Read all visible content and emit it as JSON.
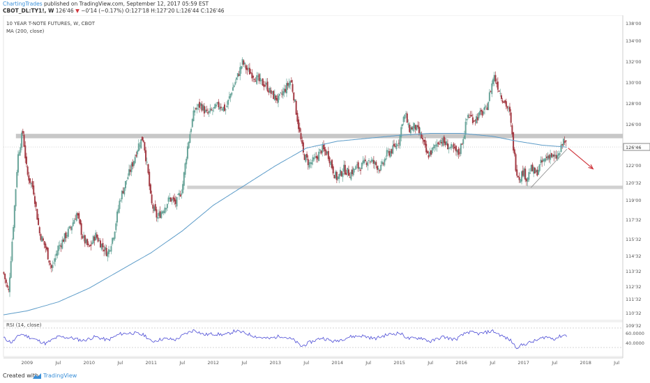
{
  "header": {
    "author": "ChartingTrades",
    "published": "published on TradingView.com, September 12, 2017 05:59 EST",
    "symbol": "CBOT_DL:TY1!, W",
    "last": "126'46",
    "change": "−0'14 (−0.17%)",
    "open": "O:127'18",
    "high": "H:127'20",
    "low": "L:126'44",
    "close": "C:126'46"
  },
  "chart_data": [
    {
      "type": "candlestick",
      "title": "10 YEAR T-NOTE FUTURES, W, CBOT",
      "indicator": "MA (200, close)",
      "x_ticks": [
        "2009",
        "Jul",
        "2010",
        "Jul",
        "2011",
        "Jul",
        "2012",
        "Jul",
        "2013",
        "Jul",
        "2014",
        "Jul",
        "2015",
        "Jul",
        "2016",
        "Jul",
        "2017",
        "Jul",
        "2018",
        "Jul"
      ],
      "y_ticks": [
        "138'00",
        "134'00",
        "132'00",
        "130'00",
        "128'00",
        "126'00",
        "124'00",
        "122'00",
        "120'32",
        "119'00",
        "117'32",
        "115'32",
        "114'32",
        "113'32",
        "112'32",
        "111'32",
        "110'32",
        "109'32"
      ],
      "current_price_label": "126'46",
      "current_price": 126.72,
      "ylim": [
        109.0,
        139.5
      ],
      "xlim": [
        2008.62,
        2018.6
      ],
      "path_anchors": [
        [
          2008.62,
          114.0
        ],
        [
          2008.7,
          111.9
        ],
        [
          2008.78,
          119.0
        ],
        [
          2008.85,
          125.7
        ],
        [
          2008.93,
          128.3
        ],
        [
          2009.0,
          124.0
        ],
        [
          2009.1,
          122.5
        ],
        [
          2009.2,
          118.0
        ],
        [
          2009.3,
          116.5
        ],
        [
          2009.4,
          114.3
        ],
        [
          2009.5,
          116.5
        ],
        [
          2009.6,
          117.5
        ],
        [
          2009.7,
          118.5
        ],
        [
          2009.8,
          120.0
        ],
        [
          2009.9,
          117.5
        ],
        [
          2010.0,
          116.4
        ],
        [
          2010.1,
          117.8
        ],
        [
          2010.2,
          116.8
        ],
        [
          2010.3,
          115.9
        ],
        [
          2010.4,
          118.0
        ],
        [
          2010.5,
          121.5
        ],
        [
          2010.6,
          123.3
        ],
        [
          2010.7,
          125.0
        ],
        [
          2010.8,
          127.0
        ],
        [
          2010.87,
          127.7
        ],
        [
          2010.95,
          124.0
        ],
        [
          2011.0,
          121.0
        ],
        [
          2011.1,
          119.5
        ],
        [
          2011.2,
          120.5
        ],
        [
          2011.3,
          121.5
        ],
        [
          2011.4,
          121.0
        ],
        [
          2011.5,
          122.5
        ],
        [
          2011.58,
          126.5
        ],
        [
          2011.65,
          129.0
        ],
        [
          2011.7,
          130.5
        ],
        [
          2011.8,
          131.0
        ],
        [
          2011.9,
          130.0
        ],
        [
          2012.0,
          130.5
        ],
        [
          2012.1,
          131.0
        ],
        [
          2012.2,
          130.5
        ],
        [
          2012.3,
          132.5
        ],
        [
          2012.4,
          134.0
        ],
        [
          2012.47,
          135.3
        ],
        [
          2012.55,
          134.5
        ],
        [
          2012.65,
          134.0
        ],
        [
          2012.75,
          133.3
        ],
        [
          2012.85,
          133.0
        ],
        [
          2012.95,
          132.0
        ],
        [
          2013.05,
          131.5
        ],
        [
          2013.15,
          132.5
        ],
        [
          2013.25,
          133.5
        ],
        [
          2013.3,
          131.8
        ],
        [
          2013.38,
          128.6
        ],
        [
          2013.45,
          126.0
        ],
        [
          2013.55,
          125.0
        ],
        [
          2013.65,
          125.5
        ],
        [
          2013.75,
          126.5
        ],
        [
          2013.85,
          126.0
        ],
        [
          2013.95,
          124.0
        ],
        [
          2014.0,
          123.5
        ],
        [
          2014.1,
          124.5
        ],
        [
          2014.2,
          124.0
        ],
        [
          2014.3,
          124.6
        ],
        [
          2014.4,
          124.8
        ],
        [
          2014.5,
          125.5
        ],
        [
          2014.6,
          125.0
        ],
        [
          2014.7,
          124.5
        ],
        [
          2014.8,
          126.0
        ],
        [
          2014.9,
          126.5
        ],
        [
          2015.0,
          127.5
        ],
        [
          2015.05,
          129.5
        ],
        [
          2015.1,
          130.0
        ],
        [
          2015.15,
          128.5
        ],
        [
          2015.25,
          128.8
        ],
        [
          2015.35,
          127.8
        ],
        [
          2015.45,
          125.8
        ],
        [
          2015.55,
          126.5
        ],
        [
          2015.65,
          127.5
        ],
        [
          2015.75,
          127.0
        ],
        [
          2015.85,
          126.5
        ],
        [
          2015.95,
          126.0
        ],
        [
          2016.0,
          127.0
        ],
        [
          2016.05,
          128.3
        ],
        [
          2016.1,
          130.0
        ],
        [
          2016.2,
          129.5
        ],
        [
          2016.3,
          130.0
        ],
        [
          2016.4,
          130.5
        ],
        [
          2016.47,
          132.5
        ],
        [
          2016.52,
          134.0
        ],
        [
          2016.58,
          133.0
        ],
        [
          2016.65,
          131.8
        ],
        [
          2016.72,
          131.0
        ],
        [
          2016.78,
          130.0
        ],
        [
          2016.83,
          127.0
        ],
        [
          2016.88,
          124.5
        ],
        [
          2016.93,
          123.6
        ],
        [
          2017.0,
          124.3
        ],
        [
          2017.05,
          123.5
        ],
        [
          2017.12,
          124.5
        ],
        [
          2017.2,
          124.0
        ],
        [
          2017.28,
          125.0
        ],
        [
          2017.35,
          125.5
        ],
        [
          2017.42,
          126.0
        ],
        [
          2017.5,
          125.5
        ],
        [
          2017.58,
          126.0
        ],
        [
          2017.65,
          127.5
        ],
        [
          2017.7,
          126.7
        ]
      ],
      "ma_anchors": [
        [
          2008.62,
          109.7
        ],
        [
          2009.0,
          110.1
        ],
        [
          2009.5,
          111.0
        ],
        [
          2010.0,
          112.4
        ],
        [
          2010.5,
          114.2
        ],
        [
          2011.0,
          116.0
        ],
        [
          2011.5,
          118.2
        ],
        [
          2012.0,
          120.8
        ],
        [
          2012.5,
          122.8
        ],
        [
          2013.0,
          124.8
        ],
        [
          2013.5,
          126.6
        ],
        [
          2014.0,
          127.3
        ],
        [
          2014.5,
          127.6
        ],
        [
          2015.0,
          127.9
        ],
        [
          2015.5,
          128.1
        ],
        [
          2016.0,
          128.1
        ],
        [
          2016.5,
          127.8
        ],
        [
          2016.9,
          127.3
        ],
        [
          2017.3,
          126.9
        ],
        [
          2017.7,
          126.7
        ]
      ],
      "resistance_band": [
        127.6,
        128.05
      ],
      "support_band": [
        122.45,
        122.8
      ],
      "support_band_start": 2011.58,
      "trendline": [
        [
          2017.12,
          122.6
        ],
        [
          2017.7,
          126.5
        ]
      ],
      "arrow": [
        [
          2017.72,
          126.6
        ],
        [
          2018.12,
          124.5
        ]
      ],
      "colors": {
        "up": "#6aa59a",
        "down": "#a33a43",
        "ma": "#5b9bc8",
        "band": "#bdbdbd",
        "arrow": "#d0363d",
        "rsi": "#4c4cd6"
      }
    },
    {
      "type": "line",
      "title": "RSI (14, close)",
      "y_ticks": [
        "60.0000",
        "40.0000"
      ],
      "ylim": [
        20,
        80
      ],
      "guides": [
        70,
        30
      ],
      "rsi_anchors": [
        [
          2008.62,
          50
        ],
        [
          2008.75,
          40
        ],
        [
          2008.9,
          58
        ],
        [
          2009.1,
          48
        ],
        [
          2009.3,
          38
        ],
        [
          2009.5,
          52
        ],
        [
          2009.7,
          50
        ],
        [
          2009.9,
          44
        ],
        [
          2010.1,
          52
        ],
        [
          2010.3,
          45
        ],
        [
          2010.5,
          58
        ],
        [
          2010.7,
          60
        ],
        [
          2010.9,
          55
        ],
        [
          2011.0,
          42
        ],
        [
          2011.2,
          48
        ],
        [
          2011.4,
          46
        ],
        [
          2011.55,
          58
        ],
        [
          2011.7,
          66
        ],
        [
          2011.85,
          56
        ],
        [
          2012.0,
          58
        ],
        [
          2012.2,
          56
        ],
        [
          2012.35,
          64
        ],
        [
          2012.5,
          60
        ],
        [
          2012.7,
          52
        ],
        [
          2012.9,
          48
        ],
        [
          2013.1,
          54
        ],
        [
          2013.3,
          45
        ],
        [
          2013.42,
          32
        ],
        [
          2013.55,
          40
        ],
        [
          2013.75,
          50
        ],
        [
          2013.95,
          42
        ],
        [
          2014.2,
          52
        ],
        [
          2014.4,
          54
        ],
        [
          2014.6,
          48
        ],
        [
          2014.8,
          56
        ],
        [
          2015.0,
          60
        ],
        [
          2015.15,
          48
        ],
        [
          2015.35,
          50
        ],
        [
          2015.5,
          42
        ],
        [
          2015.7,
          52
        ],
        [
          2015.9,
          46
        ],
        [
          2016.1,
          62
        ],
        [
          2016.3,
          58
        ],
        [
          2016.5,
          64
        ],
        [
          2016.65,
          54
        ],
        [
          2016.8,
          44
        ],
        [
          2016.88,
          30
        ],
        [
          2017.0,
          36
        ],
        [
          2017.2,
          44
        ],
        [
          2017.35,
          52
        ],
        [
          2017.5,
          48
        ],
        [
          2017.65,
          56
        ],
        [
          2017.7,
          54
        ]
      ]
    }
  ]
}
